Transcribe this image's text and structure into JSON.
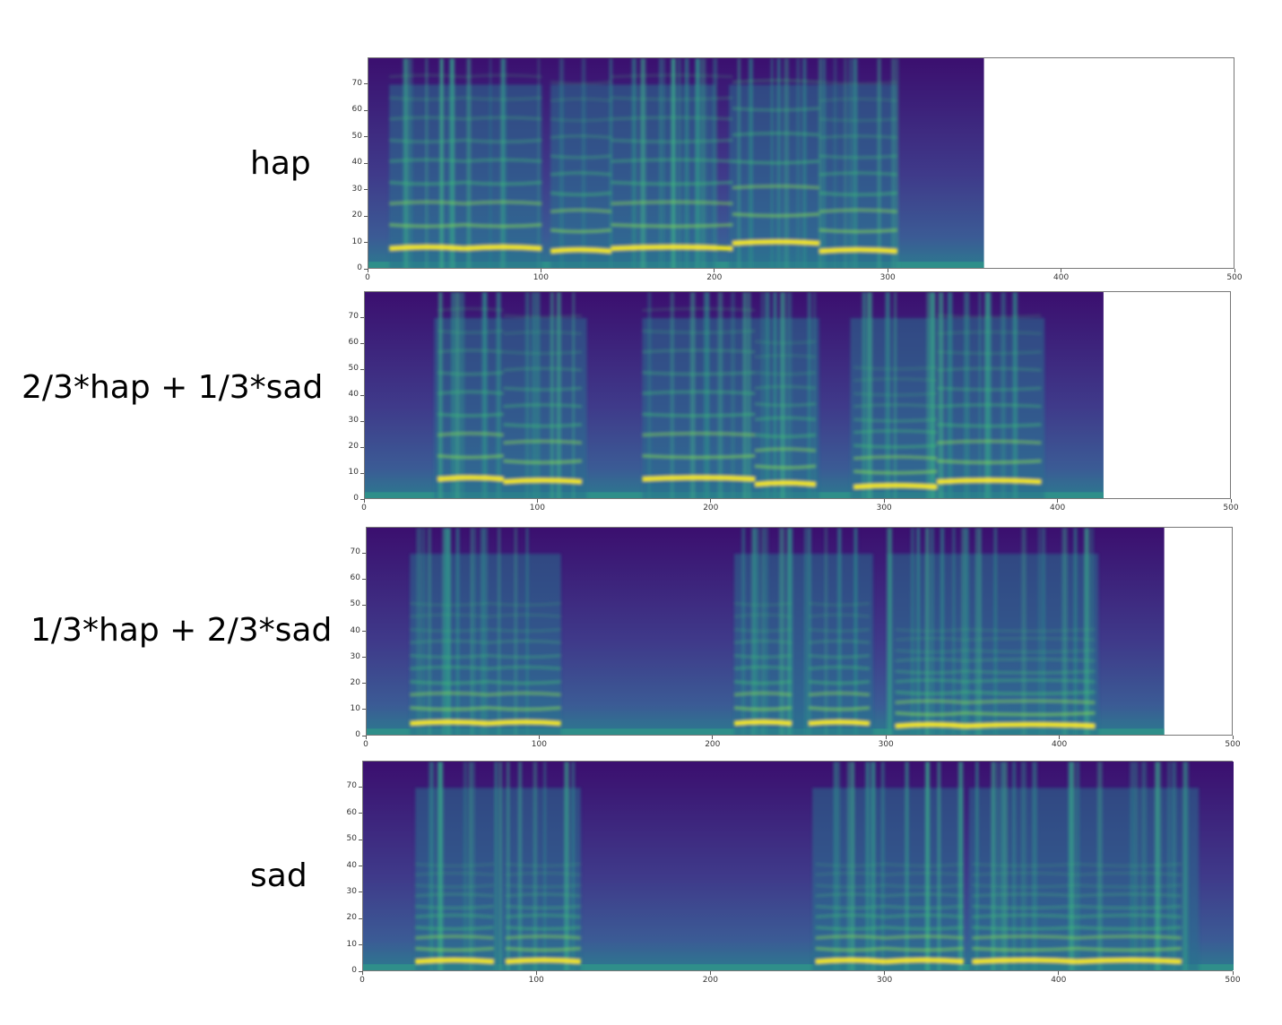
{
  "labels": [
    "hap",
    "2/3*hap + 1/3*sad",
    "1/3*hap + 2/3*sad",
    "sad"
  ],
  "chart_data": [
    {
      "type": "heatmap",
      "label": "hap",
      "colormap": "viridis",
      "xlim": [
        0,
        500
      ],
      "ylim": [
        0,
        80
      ],
      "xticks": [
        "0",
        "100",
        "200",
        "300",
        "400",
        "500"
      ],
      "yticks": [
        "0",
        "10",
        "20",
        "30",
        "40",
        "50",
        "60",
        "70"
      ],
      "data_extent_x": 355,
      "f0_segments": [
        [
          12,
          55,
          8
        ],
        [
          55,
          100,
          8
        ],
        [
          105,
          140,
          7
        ],
        [
          140,
          210,
          8
        ],
        [
          210,
          260,
          10
        ],
        [
          260,
          305,
          7
        ]
      ],
      "voiced_segments": [
        [
          12,
          100
        ],
        [
          105,
          200
        ],
        [
          208,
          305
        ]
      ]
    },
    {
      "type": "heatmap",
      "label": "2/3*hap + 1/3*sad",
      "colormap": "viridis",
      "xlim": [
        0,
        500
      ],
      "ylim": [
        0,
        80
      ],
      "xticks": [
        "0",
        "100",
        "200",
        "300",
        "400",
        "500"
      ],
      "yticks": [
        "0",
        "10",
        "20",
        "30",
        "40",
        "50",
        "60",
        "70"
      ],
      "data_extent_x": 426,
      "f0_segments": [
        [
          42,
          80,
          8
        ],
        [
          80,
          125,
          7
        ],
        [
          160,
          225,
          8
        ],
        [
          225,
          260,
          6
        ],
        [
          282,
          330,
          5
        ],
        [
          330,
          390,
          7
        ]
      ],
      "voiced_segments": [
        [
          40,
          128
        ],
        [
          160,
          262
        ],
        [
          280,
          392
        ]
      ]
    },
    {
      "type": "heatmap",
      "label": "1/3*hap + 2/3*sad",
      "colormap": "viridis",
      "xlim": [
        0,
        500
      ],
      "ylim": [
        0,
        80
      ],
      "xticks": [
        "0",
        "100",
        "200",
        "300",
        "400",
        "500"
      ],
      "yticks": [
        "0",
        "10",
        "20",
        "30",
        "40",
        "50",
        "60",
        "70"
      ],
      "data_extent_x": 460,
      "f0_segments": [
        [
          25,
          70,
          5
        ],
        [
          70,
          112,
          5
        ],
        [
          212,
          245,
          5
        ],
        [
          255,
          290,
          5
        ],
        [
          305,
          345,
          4
        ],
        [
          345,
          420,
          4
        ]
      ],
      "voiced_segments": [
        [
          25,
          112
        ],
        [
          212,
          292
        ],
        [
          300,
          422
        ]
      ]
    },
    {
      "type": "heatmap",
      "label": "sad",
      "colormap": "viridis",
      "xlim": [
        0,
        500
      ],
      "ylim": [
        0,
        80
      ],
      "xticks": [
        "0",
        "100",
        "200",
        "300",
        "400",
        "500"
      ],
      "yticks": [
        "0",
        "10",
        "20",
        "30",
        "40",
        "50",
        "60",
        "70"
      ],
      "data_extent_x": 500,
      "f0_segments": [
        [
          30,
          75,
          4
        ],
        [
          82,
          125,
          4
        ],
        [
          260,
          300,
          4
        ],
        [
          300,
          345,
          4
        ],
        [
          350,
          410,
          4
        ],
        [
          410,
          470,
          4
        ]
      ],
      "voiced_segments": [
        [
          30,
          125
        ],
        [
          258,
          345
        ],
        [
          348,
          480
        ]
      ]
    }
  ]
}
